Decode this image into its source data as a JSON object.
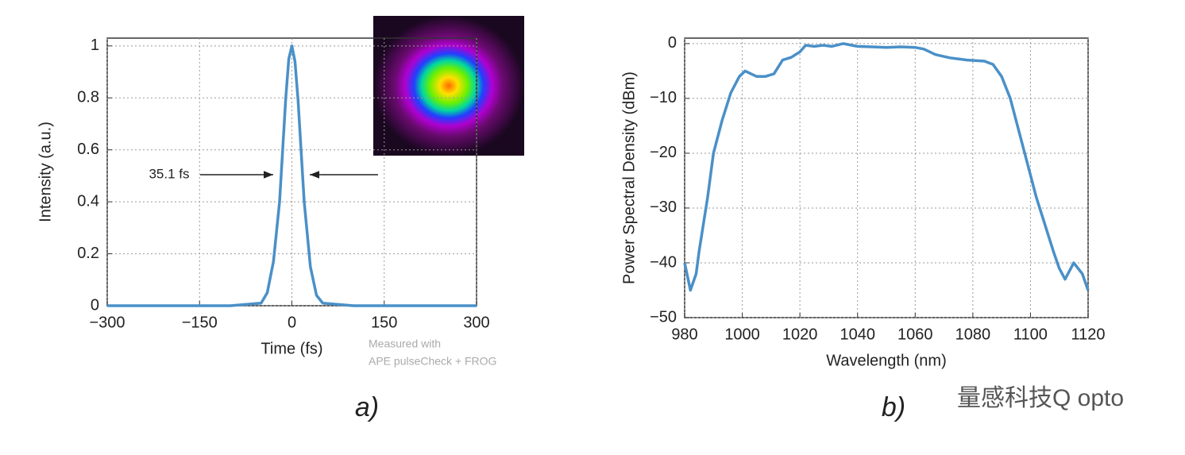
{
  "chart_data": [
    {
      "type": "line",
      "xlabel": "Time (fs)",
      "ylabel": "Intensity (a.u.)",
      "color": "#4a90c8",
      "grid": true,
      "x": [
        -300,
        -100,
        -50,
        -40,
        -30,
        -20,
        -10,
        -5,
        0,
        5,
        10,
        20,
        30,
        40,
        50,
        100,
        300
      ],
      "values": [
        0,
        0,
        0.01,
        0.05,
        0.17,
        0.4,
        0.8,
        0.95,
        1,
        0.94,
        0.79,
        0.4,
        0.15,
        0.04,
        0.01,
        0,
        0
      ],
      "xlim": [
        -300,
        300
      ],
      "xticks": [
        {
          "value": -300,
          "label": "−300"
        },
        {
          "value": -150,
          "label": "−150"
        },
        0,
        150,
        300
      ],
      "ylim": [
        0,
        1.03
      ],
      "yticks": [
        0,
        0.2,
        0.4,
        0.6,
        0.8,
        1
      ],
      "annotations": [
        "35.1 fs",
        "Measured with",
        "APE pulseCheck + FROG"
      ],
      "caption": "a)"
    },
    {
      "type": "line",
      "xlabel": "Wavelength (nm)",
      "ylabel": "Power Spectral Density (dBm)",
      "color": "#4a90c8",
      "grid": true,
      "x": [
        980,
        982,
        984,
        985,
        988,
        990,
        993,
        996,
        999,
        1001,
        1003,
        1005,
        1008,
        1011,
        1014,
        1017,
        1020,
        1022,
        1025,
        1028,
        1031,
        1035,
        1040,
        1045,
        1050,
        1055,
        1060,
        1063,
        1067,
        1072,
        1078,
        1084,
        1087,
        1090,
        1093,
        1096,
        1099,
        1102,
        1105,
        1108,
        1110,
        1112,
        1115,
        1118,
        1120
      ],
      "values": [
        -40,
        -45,
        -42,
        -38,
        -28,
        -20,
        -14,
        -9,
        -6,
        -5,
        -5.5,
        -6,
        -6,
        -5.5,
        -3,
        -2.5,
        -1.5,
        -0.3,
        -0.5,
        -0.3,
        -0.5,
        0,
        -0.5,
        -0.6,
        -0.7,
        -0.6,
        -0.7,
        -1,
        -2,
        -2.6,
        -3,
        -3.2,
        -3.8,
        -6,
        -10,
        -16,
        -22,
        -28,
        -33,
        -38,
        -41,
        -43,
        -40,
        -42,
        -45
      ],
      "xlim": [
        980,
        1120
      ],
      "xticks": [
        980,
        1000,
        1020,
        1040,
        1060,
        1080,
        1100,
        1120
      ],
      "ylim": [
        -50,
        1
      ],
      "yticks": [
        {
          "value": -50,
          "label": "−50"
        },
        {
          "value": -40,
          "label": "−40"
        },
        {
          "value": -30,
          "label": "−30"
        },
        {
          "value": -20,
          "label": "−20"
        },
        {
          "value": -10,
          "label": "−10"
        },
        0
      ],
      "caption": "b)"
    }
  ],
  "watermark": "量感科技Q opto"
}
